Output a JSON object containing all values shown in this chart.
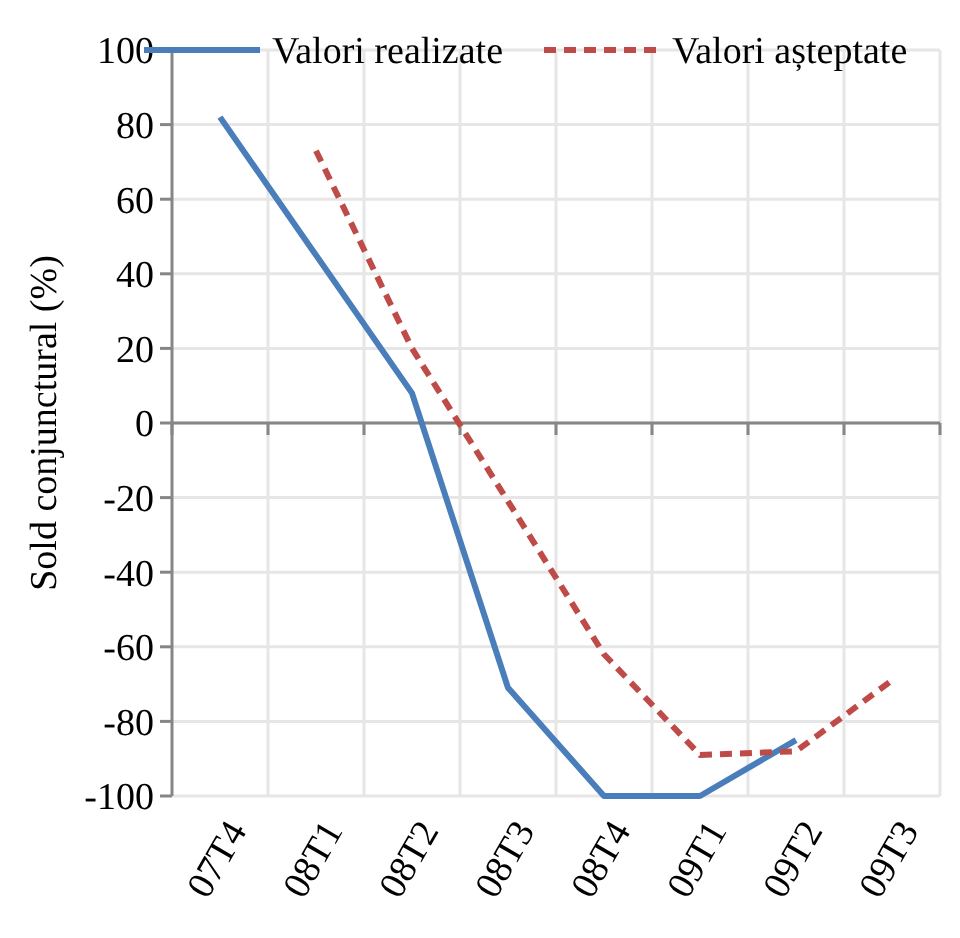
{
  "chart_data": {
    "type": "line",
    "ylabel": "Sold conjunctural (%)",
    "categories": [
      "07T4",
      "08T1",
      "08T2",
      "08T3",
      "08T4",
      "09T1",
      "09T2",
      "09T3"
    ],
    "series": [
      {
        "name": "Valori realizate",
        "color": "#4a7ebb",
        "line_style": "solid",
        "values": [
          82,
          45,
          8,
          -71,
          -100,
          -100,
          -85,
          null
        ]
      },
      {
        "name": "Valori așteptate",
        "color": "#be4b48",
        "line_style": "dashed",
        "values": [
          null,
          73,
          20,
          -21,
          -62,
          -89,
          -88,
          -69
        ]
      }
    ],
    "ylim": [
      -100,
      100
    ],
    "yticks": [
      -100,
      -80,
      -60,
      -40,
      -20,
      0,
      20,
      40,
      60,
      80,
      100
    ],
    "grid": true,
    "legend": "top right",
    "marker": "none"
  }
}
